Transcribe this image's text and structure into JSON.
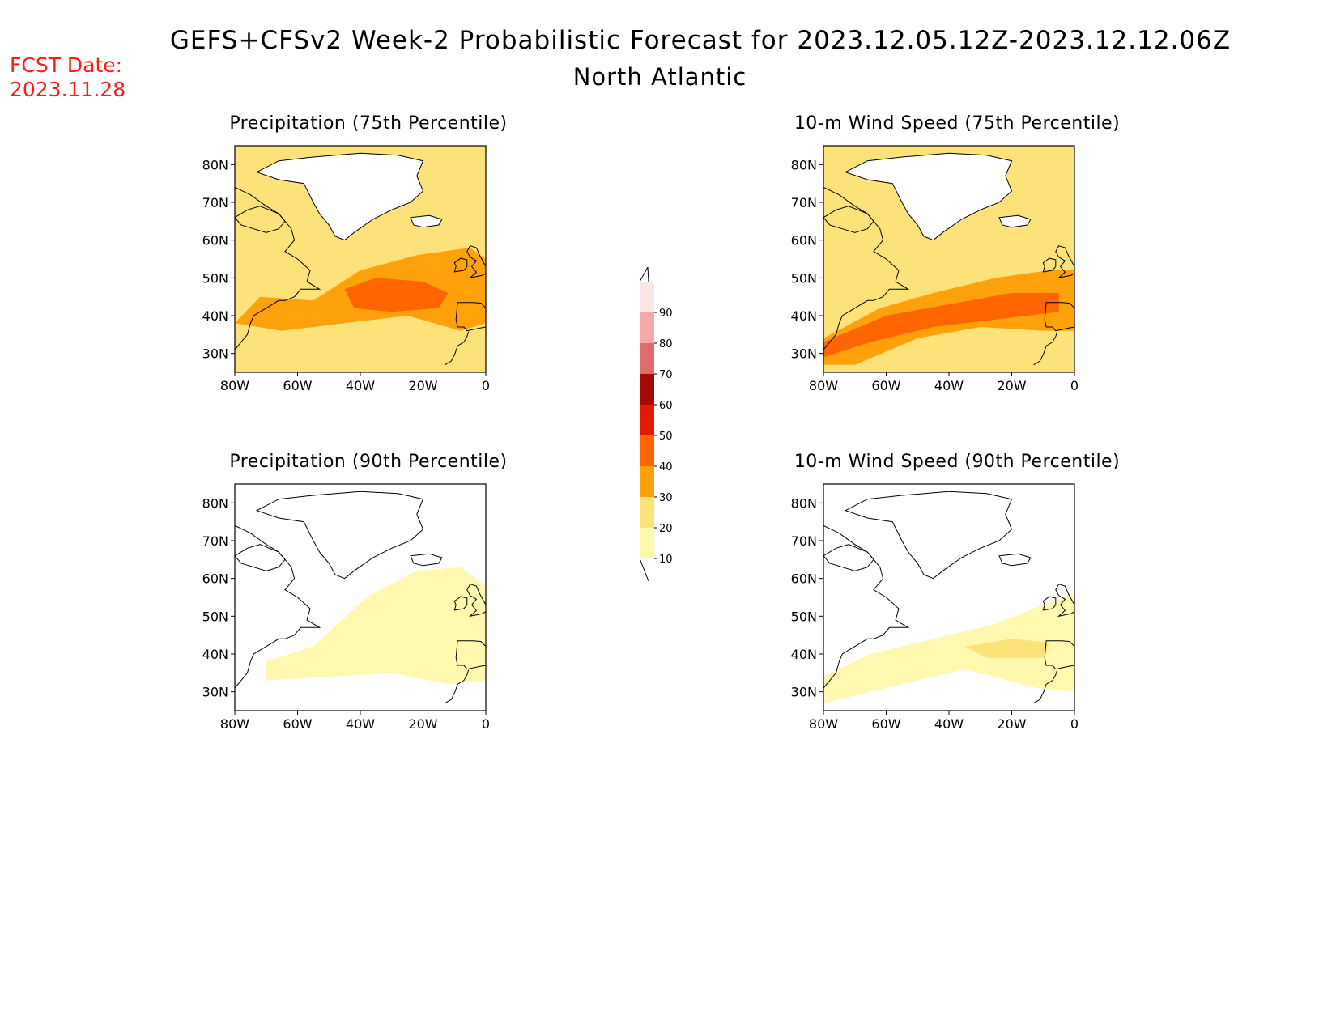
{
  "header": {
    "title": "GEFS+CFSv2 Week-2 Probabilistic Forecast for 2023.12.05.12Z-2023.12.12.06Z",
    "subtitle": "North Atlantic",
    "fcst_label": "FCST Date:",
    "fcst_date": "2023.11.28"
  },
  "map_axes": {
    "lat_labels": [
      "80N",
      "70N",
      "60N",
      "50N",
      "40N",
      "30N"
    ],
    "lon_labels": [
      "80W",
      "60W",
      "40W",
      "20W",
      "0"
    ],
    "lat_range": [
      25,
      85
    ],
    "lon_range": [
      -80,
      0
    ]
  },
  "panels": [
    {
      "title": "Precipitation (75th Percentile)",
      "variable": "precipitation",
      "percentile": 75
    },
    {
      "title": "10-m Wind Speed (75th Percentile)",
      "variable": "wind_speed_10m",
      "percentile": 75
    },
    {
      "title": "Precipitation (90th Percentile)",
      "variable": "precipitation",
      "percentile": 90
    },
    {
      "title": "10-m Wind Speed (90th Percentile)",
      "variable": "wind_speed_10m",
      "percentile": 90
    }
  ],
  "colorbar": {
    "levels": [
      "10",
      "20",
      "30",
      "40",
      "50",
      "60",
      "70",
      "80",
      "90"
    ],
    "colors": [
      "#fff9b0",
      "#fde27a",
      "#ffa10a",
      "#ff6500",
      "#e11a00",
      "#a50a00",
      "#e06b6b",
      "#f4a8a8",
      "#fde6e6"
    ]
  }
}
